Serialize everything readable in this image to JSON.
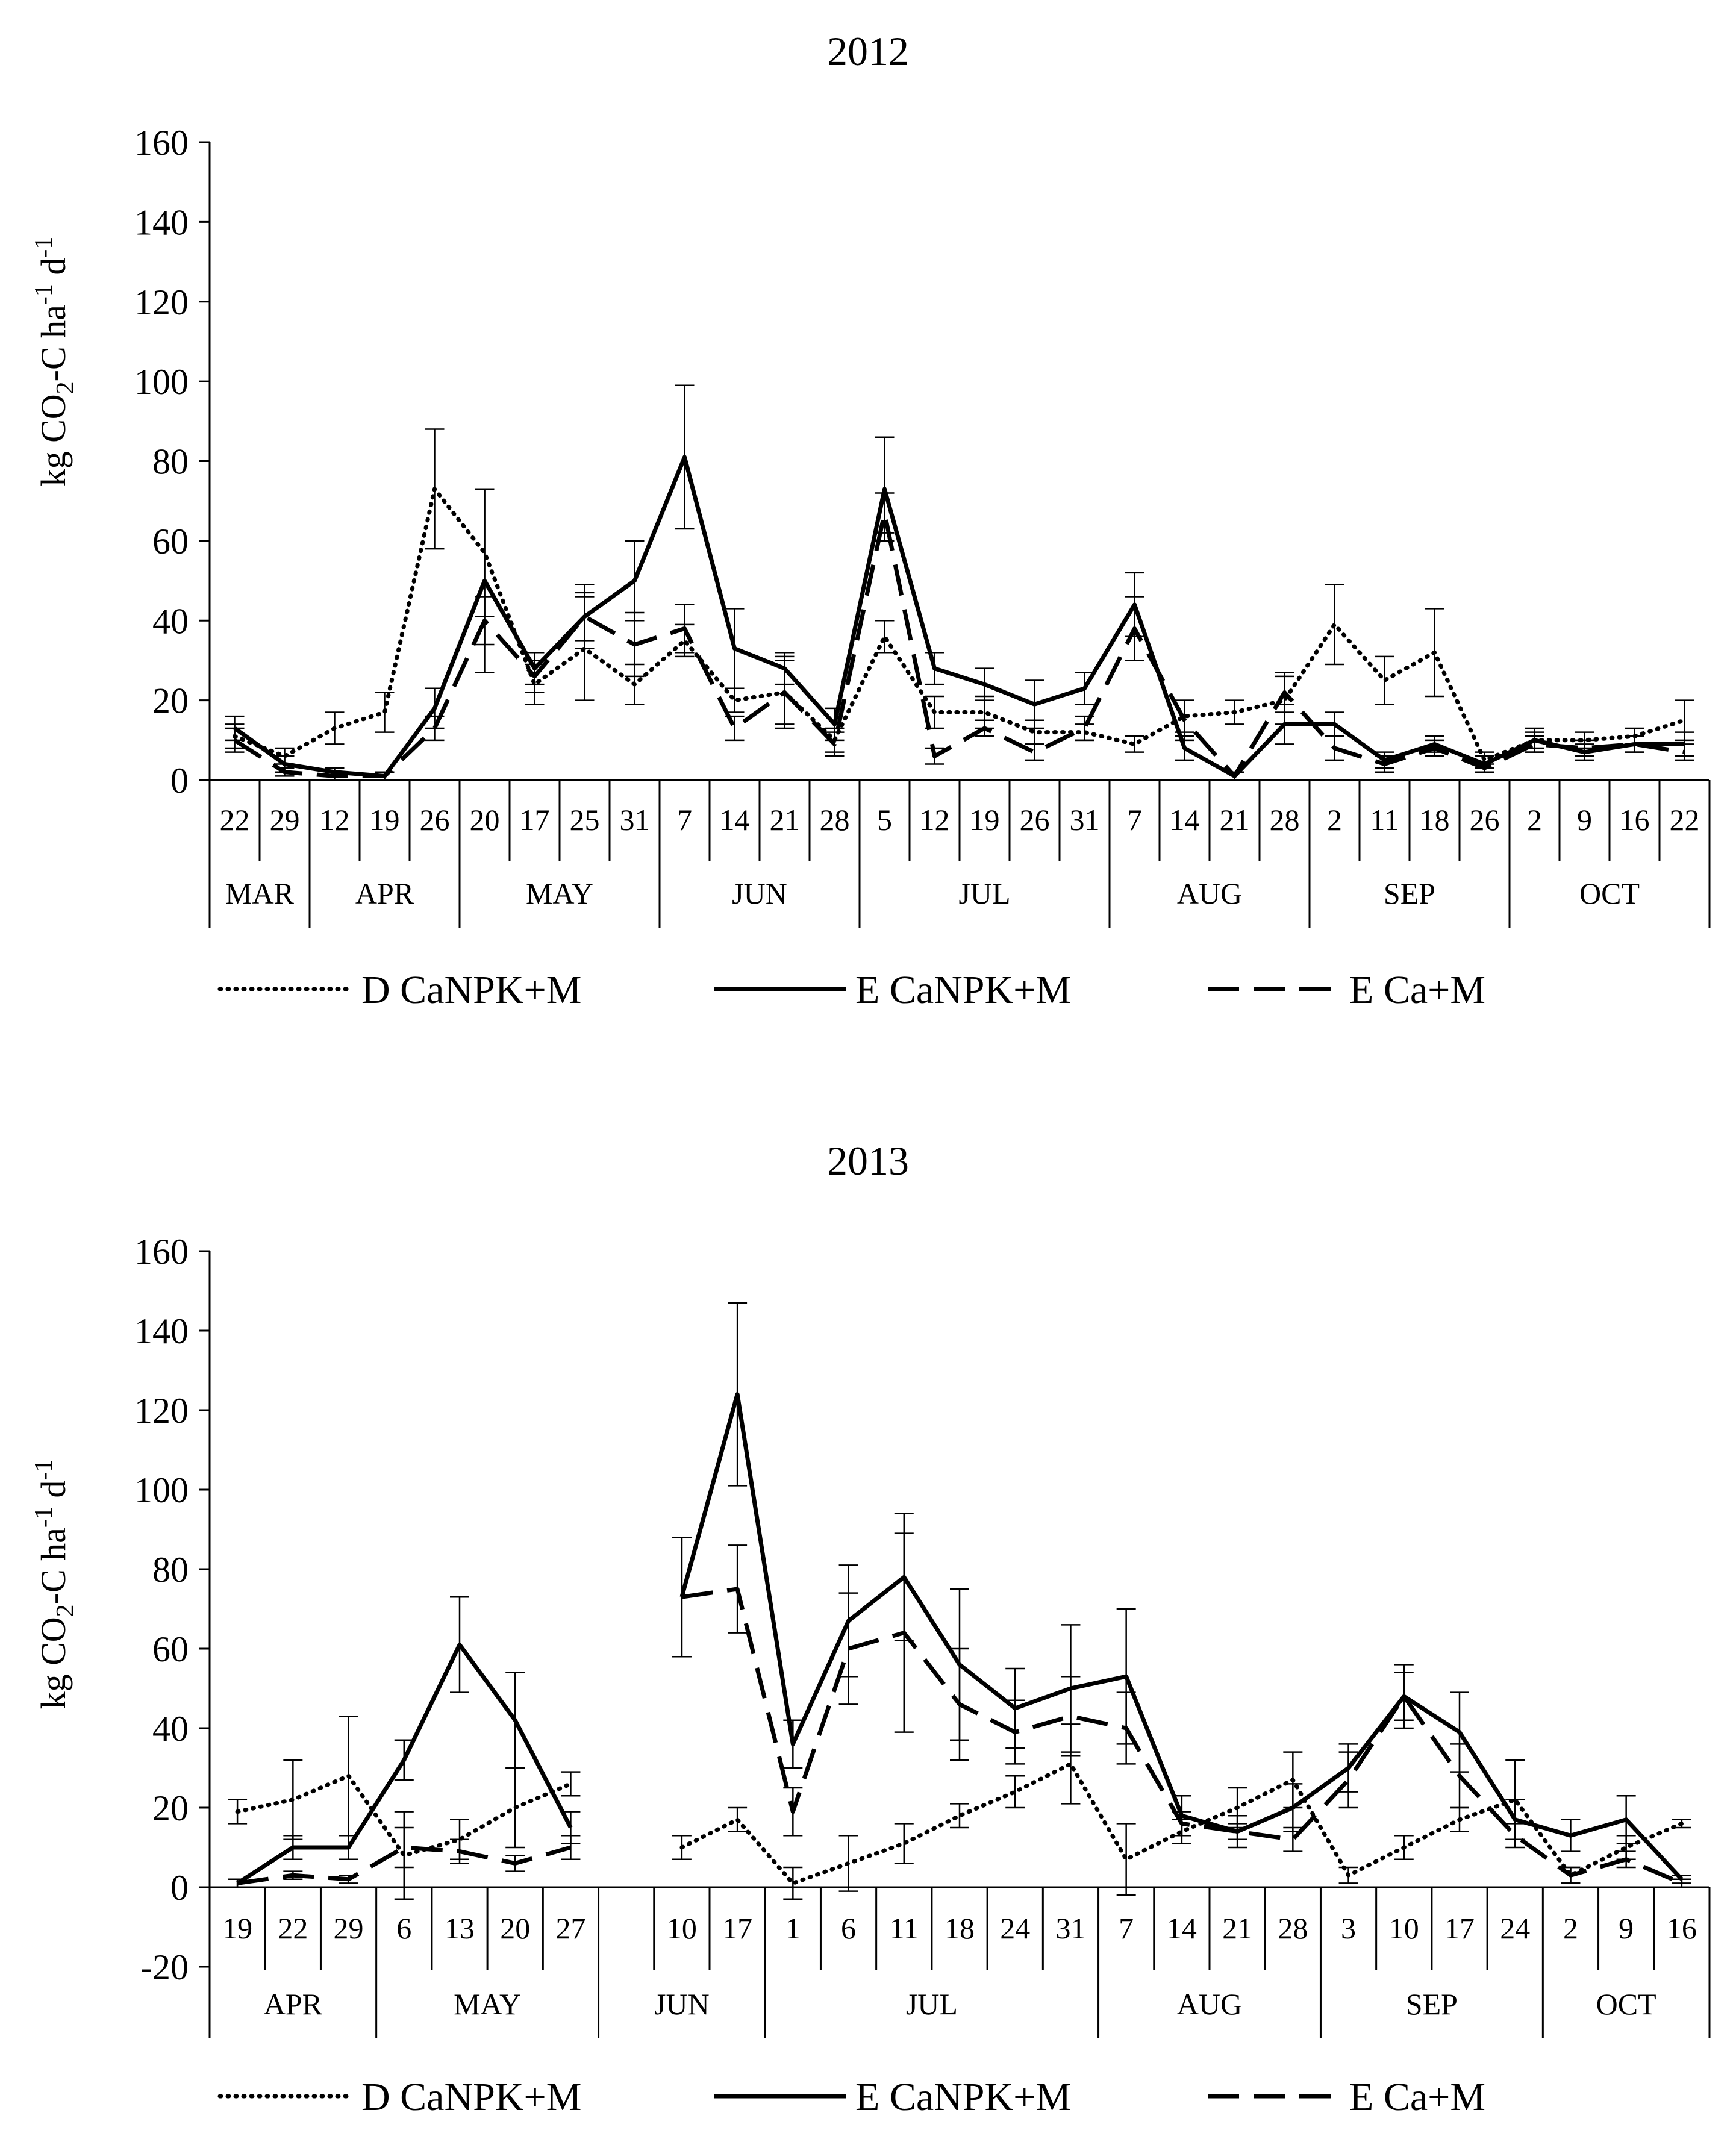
{
  "chart_data": [
    {
      "type": "line",
      "title": "2012",
      "ylabel": "kg CO2-C ha-1 d-1",
      "ylabel_parts": {
        "main": "kg CO",
        "sub": "2",
        "mid": "-C ha",
        "sup1": "-1",
        "end": " d",
        "sup2": "-1"
      },
      "ylim": [
        0,
        160
      ],
      "yticks": [
        0,
        20,
        40,
        60,
        80,
        100,
        120,
        140,
        160
      ],
      "ytick_labels": [
        "0",
        "20",
        "40",
        "60",
        "80",
        "100",
        "120",
        "140",
        "160"
      ],
      "categories": [
        "22",
        "29",
        "12",
        "19",
        "26",
        "20",
        "17",
        "25",
        "31",
        "7",
        "14",
        "21",
        "28",
        "5",
        "12",
        "19",
        "26",
        "31",
        "7",
        "14",
        "21",
        "28",
        "2",
        "11",
        "18",
        "26",
        "2",
        "9",
        "16",
        "22"
      ],
      "months": [
        {
          "label": "MAR",
          "count": 2
        },
        {
          "label": "APR",
          "count": 3
        },
        {
          "label": "MAY",
          "count": 4
        },
        {
          "label": "JUN",
          "count": 4
        },
        {
          "label": "JUL",
          "count": 5
        },
        {
          "label": "AUG",
          "count": 4
        },
        {
          "label": "SEP",
          "count": 4
        },
        {
          "label": "OCT",
          "count": 4
        }
      ],
      "series": [
        {
          "name": "D CaNPK+M",
          "style": "dotted",
          "values": [
            11,
            6,
            13,
            17,
            73,
            57,
            24,
            33,
            24,
            35,
            20,
            22,
            10,
            36,
            17,
            17,
            12,
            12,
            9,
            16,
            17,
            20,
            39,
            25,
            32,
            5,
            10,
            10,
            11,
            15
          ],
          "errors": [
            3,
            2,
            4,
            5,
            15,
            16,
            5,
            13,
            5,
            4,
            3,
            9,
            3,
            4,
            4,
            4,
            3,
            2,
            2,
            4,
            3,
            6,
            10,
            6,
            11,
            2,
            2,
            2,
            2,
            5
          ]
        },
        {
          "name": "E CaNPK+M",
          "style": "solid",
          "values": [
            13,
            4,
            2,
            1,
            18,
            50,
            28,
            41,
            50,
            81,
            33,
            28,
            14,
            73,
            28,
            24,
            19,
            23,
            44,
            8,
            1,
            14,
            14,
            5,
            9,
            4,
            10,
            7,
            9,
            9
          ],
          "errors": [
            3,
            2,
            1,
            1,
            5,
            23,
            4,
            8,
            10,
            18,
            10,
            4,
            4,
            13,
            4,
            4,
            6,
            4,
            8,
            3,
            1,
            5,
            3,
            2,
            2,
            2,
            3,
            2,
            2,
            3
          ]
        },
        {
          "name": "E Ca+M",
          "style": "dashed",
          "values": [
            10,
            2,
            1,
            1,
            13,
            40,
            26,
            41,
            34,
            38,
            13,
            22,
            9,
            67,
            6,
            13,
            7,
            13,
            38,
            15,
            1,
            22,
            8,
            4,
            8,
            3,
            9,
            8,
            9,
            7
          ],
          "errors": [
            3,
            1,
            1,
            1,
            3,
            6,
            4,
            6,
            8,
            6,
            3,
            8,
            3,
            5,
            2,
            2,
            2,
            3,
            8,
            5,
            1,
            5,
            3,
            2,
            2,
            1,
            2,
            2,
            2,
            2
          ]
        }
      ],
      "legend": [
        "D CaNPK+M",
        "E CaNPK+M",
        "E Ca+M"
      ]
    },
    {
      "type": "line",
      "title": "2013",
      "ylabel": "kg CO2-C ha-1 d-1",
      "ylabel_parts": {
        "main": "kg CO",
        "sub": "2",
        "mid": "-C ha",
        "sup1": "-1",
        "end": " d",
        "sup2": "-1"
      },
      "ylim": [
        -20,
        160
      ],
      "yticks": [
        -20,
        0,
        20,
        40,
        60,
        80,
        100,
        120,
        140,
        160
      ],
      "ytick_labels": [
        "-20",
        "0",
        "20",
        "40",
        "60",
        "80",
        "100",
        "120",
        "140",
        "160"
      ],
      "categories": [
        "19",
        "22",
        "29",
        "6",
        "13",
        "20",
        "27",
        "",
        "10",
        "17",
        "1",
        "6",
        "11",
        "18",
        "24",
        "31",
        "7",
        "14",
        "21",
        "28",
        "3",
        "10",
        "17",
        "24",
        "2",
        "9",
        "16"
      ],
      "months": [
        {
          "label": "APR",
          "count": 3
        },
        {
          "label": "MAY",
          "count": 4
        },
        {
          "label": "JUN",
          "count": 3
        },
        {
          "label": "JUL",
          "count": 6
        },
        {
          "label": "AUG",
          "count": 4
        },
        {
          "label": "SEP",
          "count": 4
        },
        {
          "label": "OCT",
          "count": 3
        }
      ],
      "series": [
        {
          "name": "D CaNPK+M",
          "style": "dotted",
          "values": [
            19,
            22,
            28,
            8,
            12,
            20,
            26,
            null,
            10,
            17,
            1,
            6,
            11,
            18,
            24,
            31,
            7,
            14,
            20,
            27,
            3,
            10,
            17,
            22,
            3,
            10,
            16
          ],
          "errors": [
            3,
            10,
            15,
            11,
            5,
            10,
            3,
            null,
            3,
            3,
            4,
            7,
            5,
            3,
            4,
            10,
            9,
            3,
            5,
            7,
            2,
            3,
            3,
            10,
            2,
            3,
            1
          ]
        },
        {
          "name": "E CaNPK+M",
          "style": "solid",
          "values": [
            1,
            10,
            10,
            32,
            61,
            42,
            15,
            null,
            73,
            124,
            36,
            67,
            78,
            56,
            45,
            50,
            53,
            18,
            14,
            20,
            30,
            48,
            39,
            17,
            13,
            17,
            2
          ],
          "errors": [
            1,
            3,
            3,
            5,
            12,
            12,
            4,
            null,
            15,
            23,
            6,
            14,
            16,
            19,
            10,
            16,
            17,
            5,
            4,
            6,
            6,
            8,
            10,
            5,
            4,
            6,
            1
          ]
        },
        {
          "name": "E Ca+M",
          "style": "dashed",
          "values": [
            1,
            3,
            2,
            10,
            9,
            6,
            10,
            null,
            73,
            75,
            19,
            60,
            64,
            46,
            39,
            43,
            40,
            16,
            14,
            12,
            27,
            48,
            28,
            13,
            3,
            7,
            1
          ],
          "errors": [
            1,
            1,
            1,
            5,
            3,
            2,
            3,
            null,
            15,
            11,
            6,
            14,
            25,
            14,
            8,
            10,
            9,
            3,
            2,
            3,
            7,
            6,
            8,
            3,
            2,
            2,
            1
          ]
        }
      ],
      "legend": [
        "D CaNPK+M",
        "E CaNPK+M",
        "E Ca+M"
      ]
    }
  ]
}
